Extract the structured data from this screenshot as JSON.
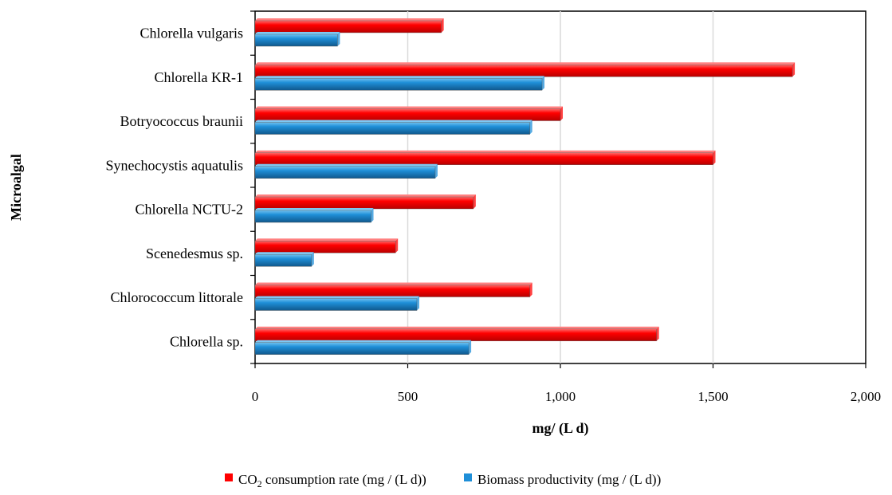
{
  "chart_data": {
    "type": "bar",
    "orientation": "horizontal",
    "title": "",
    "xlabel": "mg/ (L d)",
    "ylabel": "Microalgal",
    "xlim": [
      0,
      2000
    ],
    "x_ticks": [
      0,
      500,
      1000,
      1500,
      2000
    ],
    "x_tick_labels": [
      "0",
      "500",
      "1,000",
      "1,500",
      "2,000"
    ],
    "grid": "vertical",
    "legend_position": "bottom",
    "categories": [
      "Chlorella vulgaris",
      "Chlorella KR-1",
      "Botryococcus braunii",
      "Synechocystis aquatulis",
      "Chlorella NCTU-2",
      "Scenedesmus sp.",
      "Chlorococcum littorale",
      "Chlorella sp."
    ],
    "series": [
      {
        "name_main": "CO",
        "name_sub": "2",
        "name_rest": " consumption rate (mg / (L d))",
        "color": "#ff0000",
        "values": [
          610,
          1760,
          1000,
          1500,
          715,
          460,
          900,
          1315
        ]
      },
      {
        "name_main": "Biomass productivity (mg / (L d))",
        "name_sub": "",
        "name_rest": "",
        "color": "#1f8fd8",
        "values": [
          270,
          940,
          900,
          590,
          380,
          185,
          530,
          700
        ]
      }
    ]
  }
}
